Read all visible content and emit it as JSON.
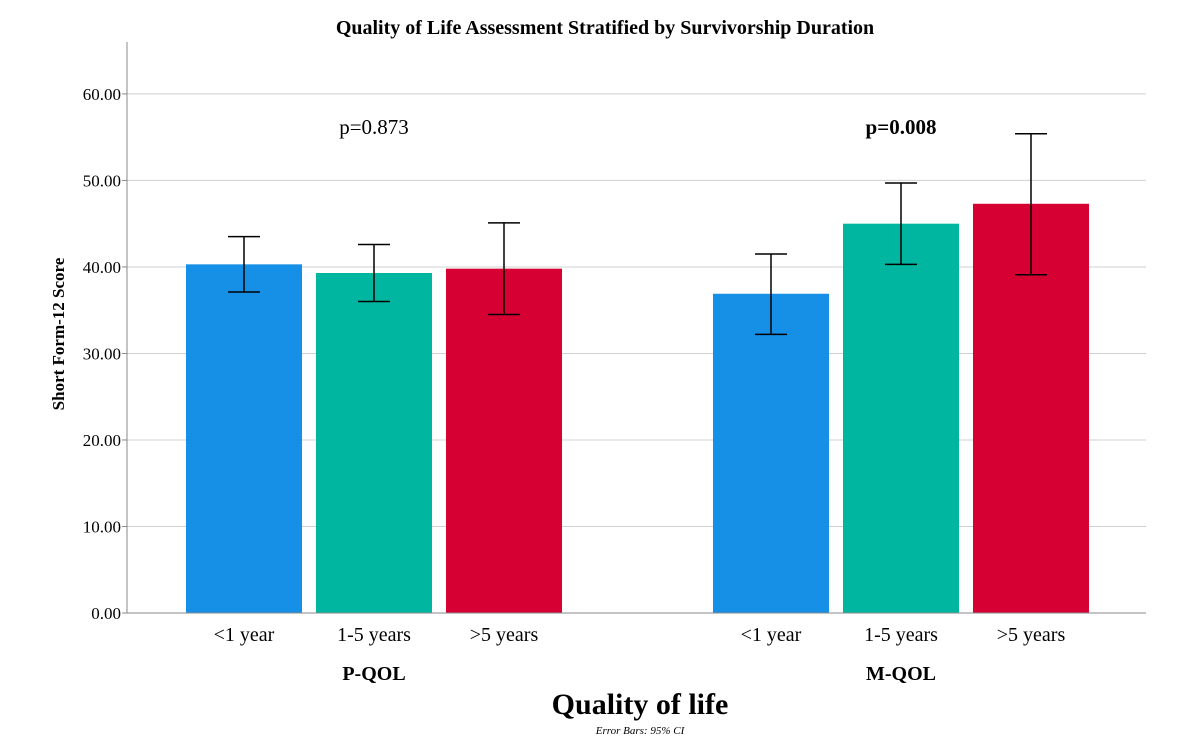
{
  "chart_data": {
    "type": "bar",
    "title": "Quality of Life Assessment Stratified by Survivorship Duration",
    "xlabel": "Quality of life",
    "ylabel": "Short Form-12 Score",
    "footnote": "Error Bars: 95% CI",
    "ylim": [
      0,
      66
    ],
    "yticks": [
      "0.00",
      "10.00",
      "20.00",
      "30.00",
      "40.00",
      "50.00",
      "60.00"
    ],
    "grid": true,
    "groups": [
      {
        "name": "P-QOL",
        "pvalue": "p=0.873",
        "pvalue_bold": false,
        "bars": [
          {
            "label": "<1 year",
            "value": 40.3,
            "ci_low": 37.1,
            "ci_high": 43.5,
            "color": "#1690e6"
          },
          {
            "label": "1-5 years",
            "value": 39.3,
            "ci_low": 36.0,
            "ci_high": 42.6,
            "color": "#00b6a0"
          },
          {
            "label": ">5 years",
            "value": 39.8,
            "ci_low": 34.5,
            "ci_high": 45.1,
            "color": "#d60032"
          }
        ]
      },
      {
        "name": "M-QOL",
        "pvalue": "p=0.008",
        "pvalue_bold": true,
        "bars": [
          {
            "label": "<1 year",
            "value": 36.9,
            "ci_low": 32.2,
            "ci_high": 41.5,
            "color": "#1690e6"
          },
          {
            "label": "1-5 years",
            "value": 45.0,
            "ci_low": 40.3,
            "ci_high": 49.7,
            "color": "#00b6a0"
          },
          {
            "label": ">5 years",
            "value": 47.3,
            "ci_low": 39.1,
            "ci_high": 55.4,
            "color": "#d60032"
          }
        ]
      }
    ]
  }
}
